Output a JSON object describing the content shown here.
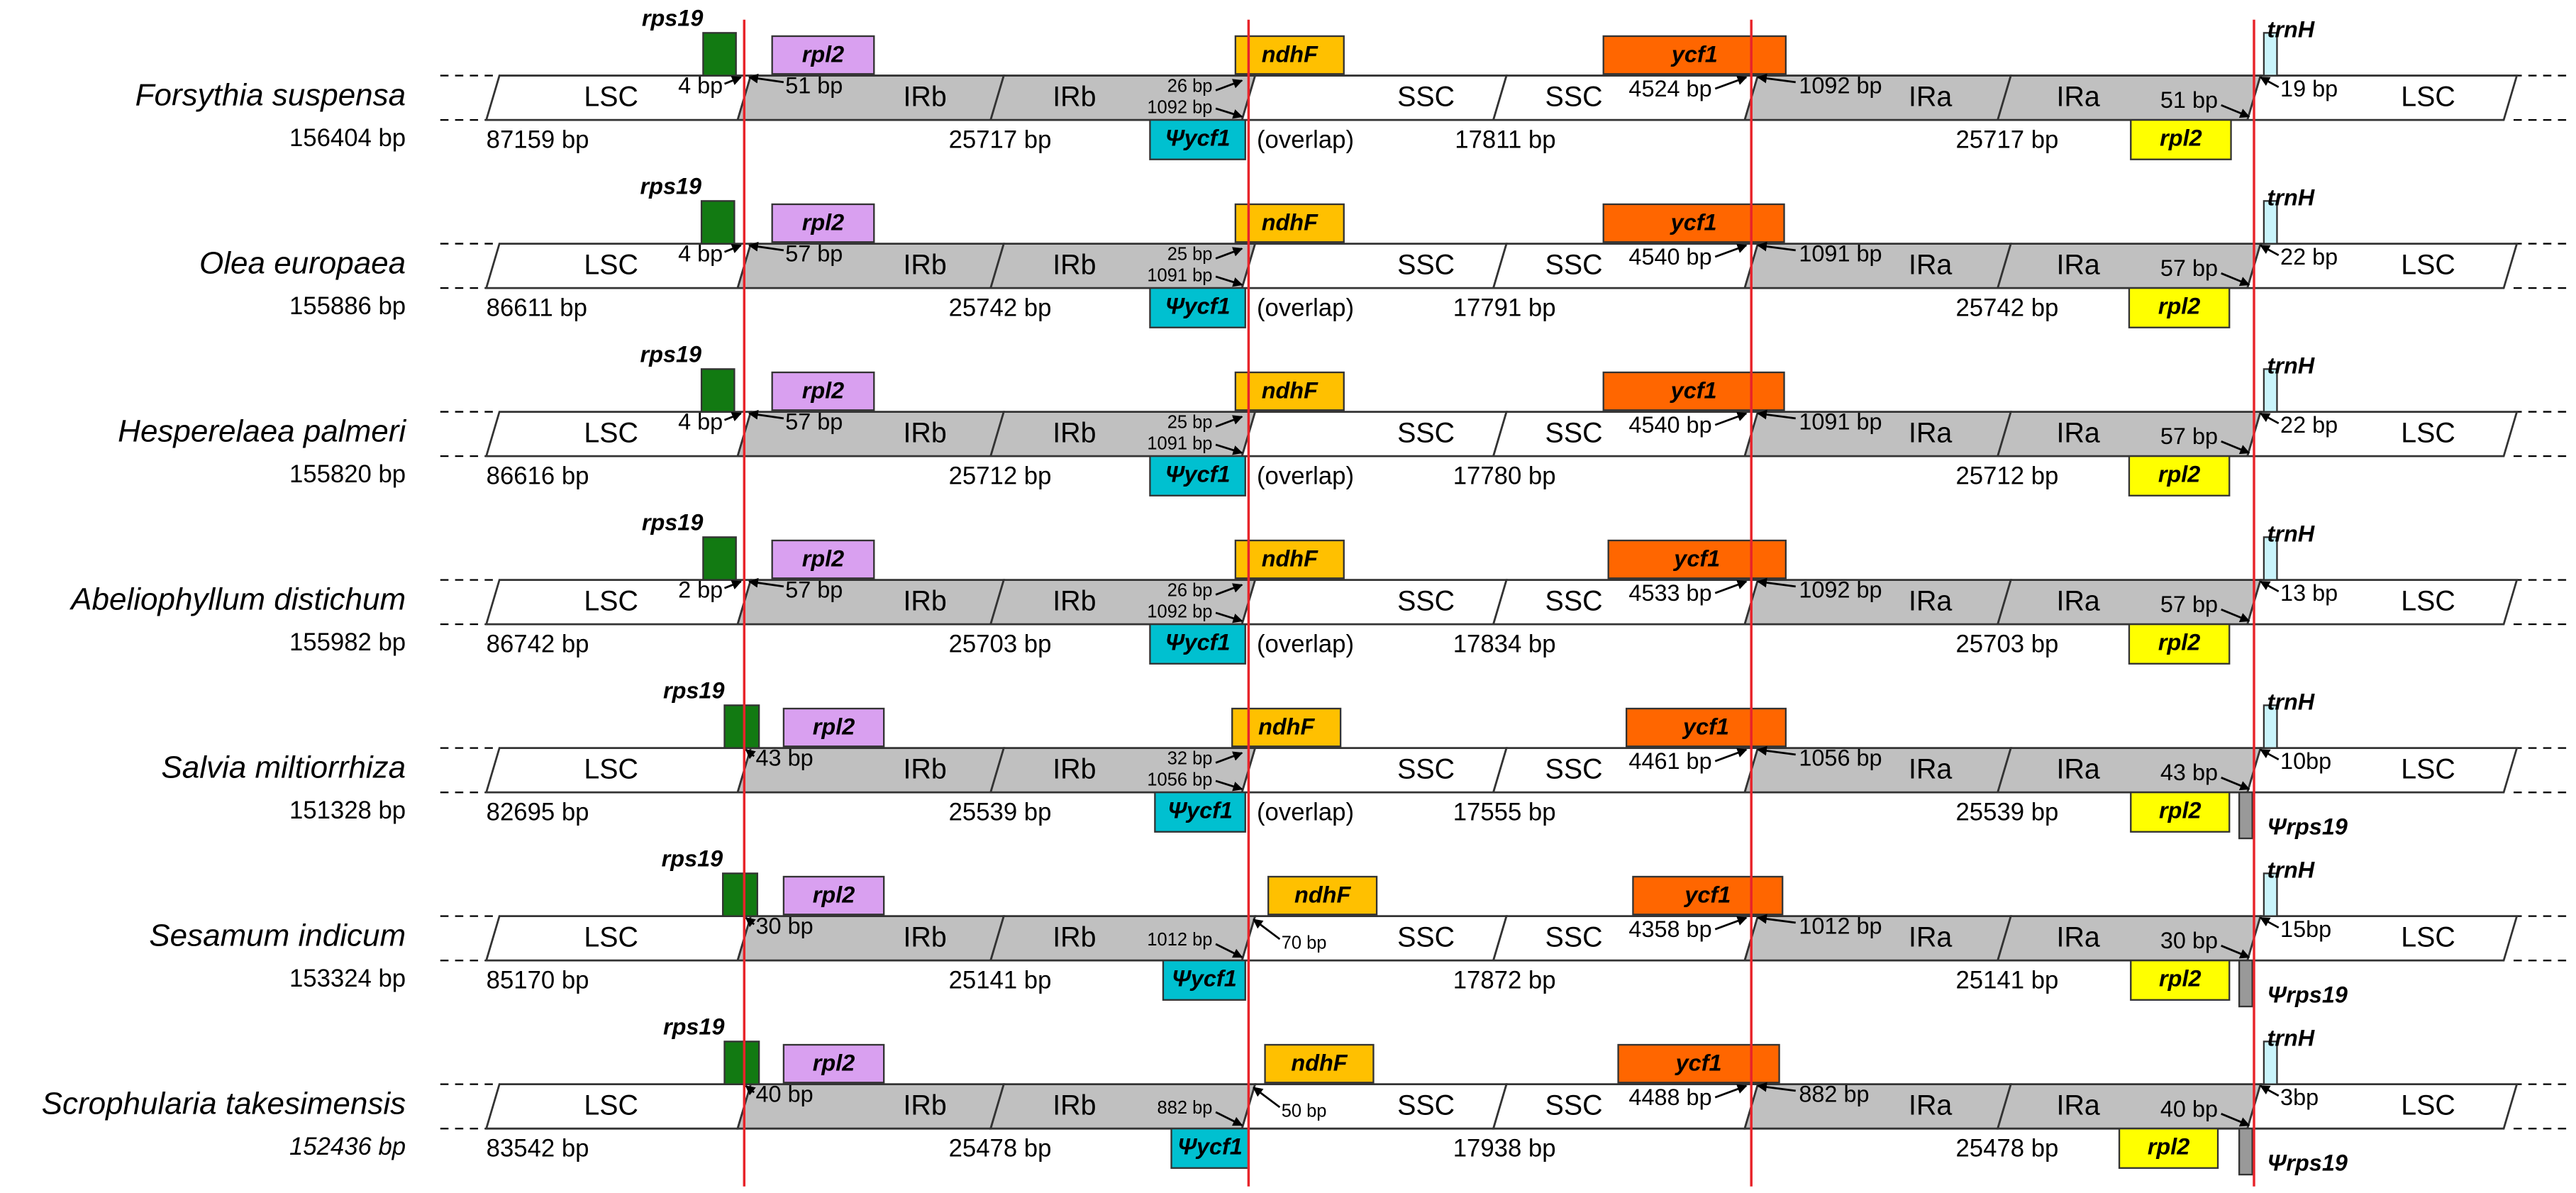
{
  "rows": [
    {
      "name": "Forsythia suspensa",
      "size": "156404 bp",
      "regions": [
        "LSC",
        "IRb",
        "IRb",
        "SSC",
        "SSC",
        "IRa",
        "IRa",
        "LSC"
      ],
      "lengths": {
        "lsc": "87159 bp",
        "irb": "25717 bp",
        "overlap": "(overlap)",
        "ssc": "17811 bp",
        "ira": "25717 bp"
      },
      "genes": {
        "rps19": "rps19",
        "rpl2": "rpl2",
        "ndhF": "ndhF",
        "ycf1": "ycf1",
        "trnH": "trnH",
        "psi_ycf1": "Ψycf1",
        "rpl2_ira": "rpl2"
      },
      "distances": {
        "rps19": "4 bp",
        "rpl2": "51 bp",
        "ndhF": "26 bp",
        "psi_ycf1": "1092 bp",
        "ycf1_left": "4524 bp",
        "ycf1_right": "1092 bp",
        "rpl2_ira": "51 bp",
        "trnH": "19 bp"
      }
    },
    {
      "name": "Olea europaea",
      "size": "155886 bp",
      "regions": [
        "LSC",
        "IRb",
        "IRb",
        "SSC",
        "SSC",
        "IRa",
        "IRa",
        "LSC"
      ],
      "lengths": {
        "lsc": "86611 bp",
        "irb": "25742 bp",
        "overlap": "(overlap)",
        "ssc": "17791 bp",
        "ira": "25742 bp"
      },
      "genes": {
        "rps19": "rps19",
        "rpl2": "rpl2",
        "ndhF": "ndhF",
        "ycf1": "ycf1",
        "trnH": "trnH",
        "psi_ycf1": "Ψycf1",
        "rpl2_ira": "rpl2"
      },
      "distances": {
        "rps19": "4 bp",
        "rpl2": "57 bp",
        "ndhF": "25 bp",
        "psi_ycf1": "1091 bp",
        "ycf1_left": "4540 bp",
        "ycf1_right": "1091 bp",
        "rpl2_ira": "57 bp",
        "trnH": "22 bp"
      }
    },
    {
      "name": "Hesperelaea palmeri",
      "size": "155820 bp",
      "regions": [
        "LSC",
        "IRb",
        "IRb",
        "SSC",
        "SSC",
        "IRa",
        "IRa",
        "LSC"
      ],
      "lengths": {
        "lsc": "86616 bp",
        "irb": "25712 bp",
        "overlap": "(overlap)",
        "ssc": "17780 bp",
        "ira": "25712 bp"
      },
      "genes": {
        "rps19": "rps19",
        "rpl2": "rpl2",
        "ndhF": "ndhF",
        "ycf1": "ycf1",
        "trnH": "trnH",
        "psi_ycf1": "Ψycf1",
        "rpl2_ira": "rpl2"
      },
      "distances": {
        "rps19": "4 bp",
        "rpl2": "57 bp",
        "ndhF": "25 bp",
        "psi_ycf1": "1091 bp",
        "ycf1_left": "4540 bp",
        "ycf1_right": "1091 bp",
        "rpl2_ira": "57 bp",
        "trnH": "22 bp"
      }
    },
    {
      "name": "Abeliophyllum distichum",
      "size": "155982 bp",
      "regions": [
        "LSC",
        "IRb",
        "IRb",
        "SSC",
        "SSC",
        "IRa",
        "IRa",
        "LSC"
      ],
      "lengths": {
        "lsc": "86742 bp",
        "irb": "25703 bp",
        "overlap": "(overlap)",
        "ssc": "17834 bp",
        "ira": "25703 bp"
      },
      "genes": {
        "rps19": "rps19",
        "rpl2": "rpl2",
        "ndhF": "ndhF",
        "ycf1": "ycf1",
        "trnH": "trnH",
        "psi_ycf1": "Ψycf1",
        "rpl2_ira": "rpl2"
      },
      "distances": {
        "rps19": "2 bp",
        "rpl2": "57 bp",
        "ndhF": "26 bp",
        "psi_ycf1": "1092 bp",
        "ycf1_left": "4533 bp",
        "ycf1_right": "1092 bp",
        "rpl2_ira": "57 bp",
        "trnH": "13 bp"
      }
    },
    {
      "name": "Salvia miltiorrhiza",
      "size": "151328 bp",
      "regions": [
        "LSC",
        "IRb",
        "IRb",
        "SSC",
        "SSC",
        "IRa",
        "IRa",
        "LSC"
      ],
      "lengths": {
        "lsc": "82695 bp",
        "irb": "25539 bp",
        "overlap": "(overlap)",
        "ssc": "17555 bp",
        "ira": "25539 bp"
      },
      "genes": {
        "rps19": "rps19",
        "rpl2": "rpl2",
        "ndhF": "ndhF",
        "ycf1": "ycf1",
        "trnH": "trnH",
        "psi_ycf1": "Ψycf1",
        "rpl2_ira": "rpl2",
        "psi_rps19": "Ψrps19"
      },
      "distances": {
        "rps19": "43 bp",
        "ndhF": "32 bp",
        "psi_ycf1": "1056 bp",
        "ycf1_left": "4461 bp",
        "ycf1_right": "1056 bp",
        "rpl2_ira": "43 bp",
        "trnH": "10bp"
      }
    },
    {
      "name": "Sesamum indicum",
      "size": "153324 bp",
      "regions": [
        "LSC",
        "IRb",
        "IRb",
        "SSC",
        "SSC",
        "IRa",
        "IRa",
        "LSC"
      ],
      "lengths": {
        "lsc": "85170 bp",
        "irb": "25141 bp",
        "ssc": "17872 bp",
        "ira": "25141 bp"
      },
      "genes": {
        "rps19": "rps19",
        "rpl2": "rpl2",
        "ndhF": "ndhF",
        "ycf1": "ycf1",
        "trnH": "trnH",
        "psi_ycf1": "Ψycf1",
        "rpl2_ira": "rpl2",
        "psi_rps19": "Ψrps19"
      },
      "distances": {
        "rps19": "30 bp",
        "ndhF": "70 bp",
        "psi_ycf1": "1012 bp",
        "ycf1_left": "4358 bp",
        "ycf1_right": "1012 bp",
        "rpl2_ira": "30 bp",
        "trnH": "15bp"
      }
    },
    {
      "name": "Scrophularia takesimensis",
      "size": "152436 bp",
      "regions": [
        "LSC",
        "IRb",
        "IRb",
        "SSC",
        "SSC",
        "IRa",
        "IRa",
        "LSC"
      ],
      "lengths": {
        "lsc": "83542 bp",
        "irb": "25478 bp",
        "ssc": "17938 bp",
        "ira": "25478 bp"
      },
      "genes": {
        "rps19": "rps19",
        "rpl2": "rpl2",
        "ndhF": "ndhF",
        "ycf1": "ycf1",
        "trnH": "trnH",
        "psi_ycf1": "Ψycf1",
        "rpl2_ira": "rpl2",
        "psi_rps19": "Ψrps19"
      },
      "distances": {
        "rps19": "40 bp",
        "ndhF": "50 bp",
        "psi_ycf1": "882 bp",
        "ycf1_left": "4488 bp",
        "ycf1_right": "882 bp",
        "rpl2_ira": "40 bp",
        "trnH": "3bp"
      }
    }
  ]
}
